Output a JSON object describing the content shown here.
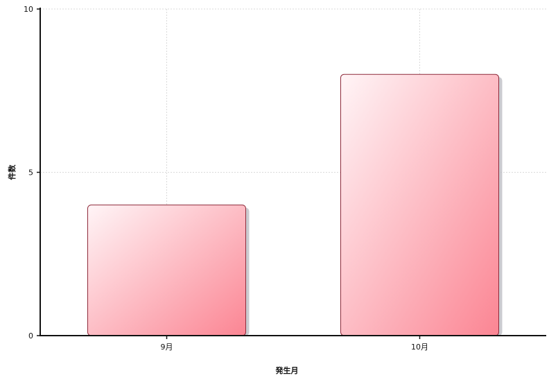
{
  "chart_data": {
    "type": "bar",
    "categories": [
      "9月",
      "10月"
    ],
    "values": [
      4,
      8
    ],
    "xlabel": "発生月",
    "ylabel": "件数",
    "ylim": [
      0,
      10
    ],
    "yticks": [
      0,
      5,
      10
    ],
    "grid": true,
    "legend": "none",
    "colors": {
      "bar_light": "#fff5f7",
      "bar_dark": "#fb8593",
      "bar_border": "#8e2a3a",
      "bar_shadow": "#b9b9c0",
      "axis": "#111111",
      "grid": "#d9d9d9"
    }
  }
}
